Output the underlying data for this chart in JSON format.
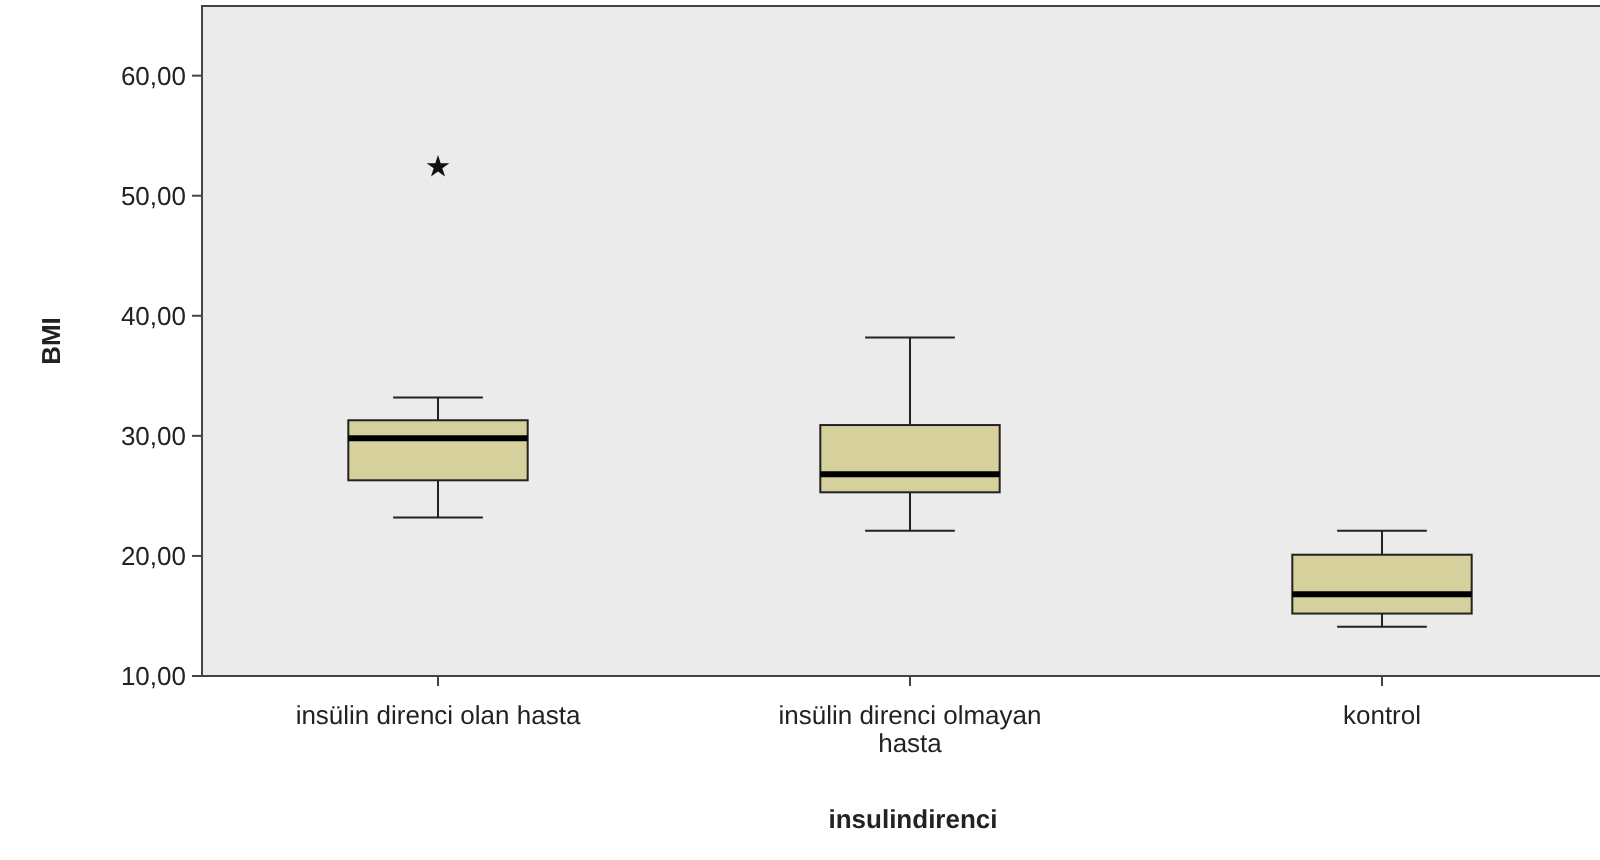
{
  "chart_data": {
    "type": "box",
    "xlabel": "insulindirenci",
    "ylabel": "BMI",
    "categories": [
      "insülin direnci olan hasta",
      "insülin direnci olmayan hasta",
      "kontrol"
    ],
    "color": "#d6d09c",
    "boxes": [
      {
        "low": 23.2,
        "q1": 26.3,
        "median": 29.8,
        "q3": 31.3,
        "high": 33.2,
        "outliers": [
          52.4
        ]
      },
      {
        "low": 22.1,
        "q1": 25.3,
        "median": 26.8,
        "q3": 30.9,
        "high": 38.2
      },
      {
        "low": 14.1,
        "q1": 15.2,
        "median": 16.8,
        "q3": 20.1,
        "high": 22.1
      }
    ],
    "ylim": [
      10,
      65.8
    ],
    "yticks": [
      {
        "value": 10,
        "label": "10,00"
      },
      {
        "value": 20,
        "label": "20,00"
      },
      {
        "value": 30,
        "label": "30,00"
      },
      {
        "value": 40,
        "label": "40,00"
      },
      {
        "value": 50,
        "label": "50,00"
      },
      {
        "value": 60,
        "label": "60,00"
      }
    ],
    "grid": false,
    "marker": "star"
  }
}
